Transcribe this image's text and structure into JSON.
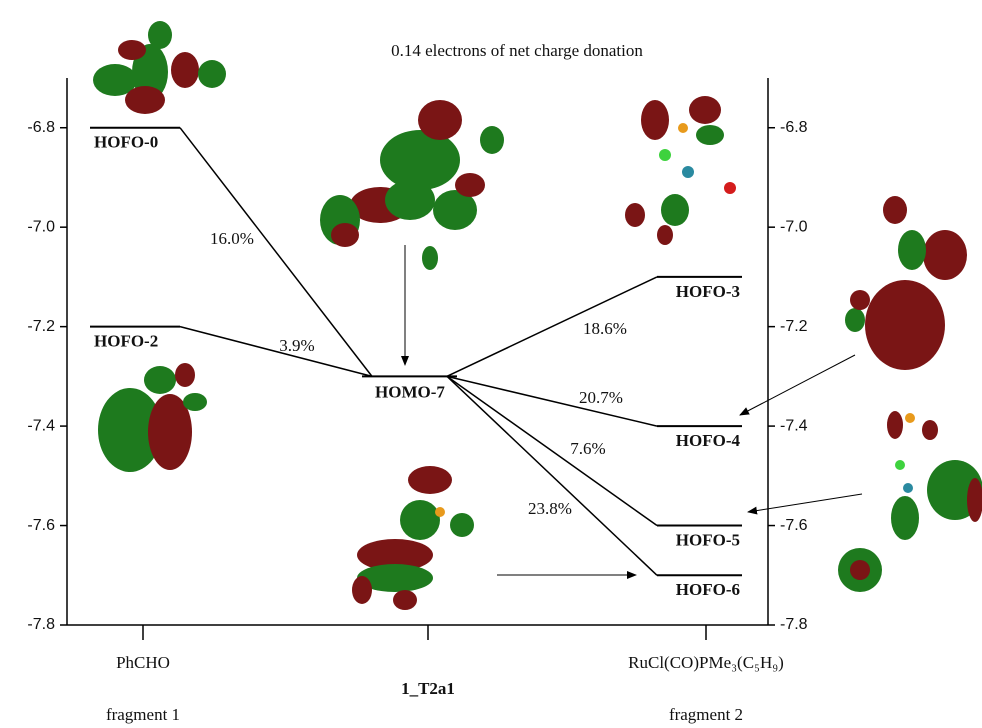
{
  "chart_data": {
    "type": "energy-levels",
    "title": "0.14 electrons of net charge donation",
    "categories": [
      "PhCHO",
      "1_T2a1",
      "RuCl(CO)PMe₃(C₅H₉)"
    ],
    "fragment_labels": [
      "fragment 1",
      "fragment 2"
    ],
    "ylim": [
      -7.8,
      -6.7
    ],
    "yticks": [
      -6.8,
      {
        "value": -7,
        "label": "-7.0"
      },
      -7.2,
      -7.4,
      -7.6,
      -7.8
    ],
    "y2lim": [
      -7.8,
      -6.7
    ],
    "y2ticks": [
      -6.8,
      {
        "value": -7,
        "label": "-7.0"
      },
      -7.2,
      -7.4,
      -7.6,
      -7.8
    ],
    "central_level": {
      "name": "HOMO-7",
      "energy": -7.3
    },
    "levels": [
      {
        "name": "HOFO-0",
        "energy": -6.8,
        "fragment": 0,
        "value": 16.0,
        "value_label": "16.0%"
      },
      {
        "name": "HOFO-2",
        "energy": -7.2,
        "fragment": 0,
        "value": 3.9,
        "value_label": "3.9%"
      },
      {
        "name": "HOFO-3",
        "energy": -7.1,
        "fragment": 2,
        "value": 18.6,
        "value_label": "18.6%"
      },
      {
        "name": "HOFO-4",
        "energy": -7.4,
        "fragment": 2,
        "value": 20.7,
        "value_label": "20.7%"
      },
      {
        "name": "HOFO-5",
        "energy": -7.6,
        "fragment": 2,
        "value": 7.6,
        "value_label": "7.6%"
      },
      {
        "name": "HOFO-6",
        "energy": -7.7,
        "fragment": 2,
        "value": 23.8,
        "value_label": "23.8%"
      }
    ]
  }
}
